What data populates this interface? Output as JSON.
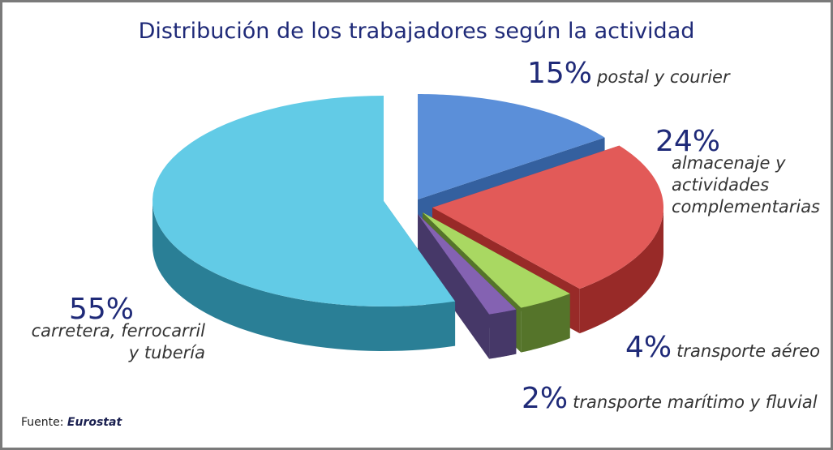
{
  "chart_data": {
    "type": "pie",
    "title": "Distribución de los trabajadores según la actividad",
    "slices": [
      {
        "pct_label": "15%",
        "label": "postal y courier",
        "value": 15,
        "color": "#5b8fd9",
        "side": "#34609f"
      },
      {
        "pct_label": "24%",
        "label": "almacenaje y actividades complementarias",
        "value": 24,
        "color": "#e25a58",
        "side": "#982a28"
      },
      {
        "pct_label": "4%",
        "label": "transporte aéreo",
        "value": 4,
        "color": "#a9d862",
        "side": "#55742a"
      },
      {
        "pct_label": "2%",
        "label": "transporte marítimo y fluvial",
        "value": 2,
        "color": "#8462b2",
        "side": "#463868"
      },
      {
        "pct_label": "55%",
        "label": "carretera, ferrocarril y tubería",
        "value": 55,
        "color": "#62cbe6",
        "side": "#2a7f96"
      }
    ],
    "legend": "none"
  },
  "source": {
    "prefix": "Fuente:",
    "name": "Eurostat"
  }
}
